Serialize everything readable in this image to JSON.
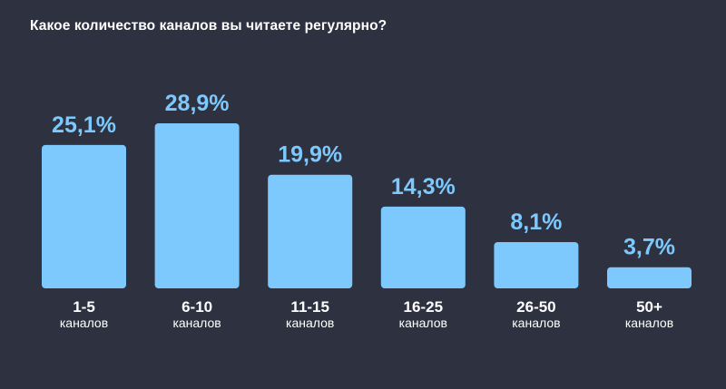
{
  "title": "Какое количество каналов вы читаете регулярно?",
  "colors": {
    "background": "#2e3240",
    "bar": "#7dc9fd",
    "value_label": "#7dc9fd",
    "category_label": "#ffffff"
  },
  "chart_data": {
    "type": "bar",
    "title": "Какое количество каналов вы читаете регулярно?",
    "categories": [
      {
        "main": "1-5",
        "sub": "каналов"
      },
      {
        "main": "6-10",
        "sub": "каналов"
      },
      {
        "main": "11-15",
        "sub": "каналов"
      },
      {
        "main": "16-25",
        "sub": "каналов"
      },
      {
        "main": "26-50",
        "sub": "каналов"
      },
      {
        "main": "50+",
        "sub": "каналов"
      }
    ],
    "values": [
      25.1,
      28.9,
      19.9,
      14.3,
      8.1,
      3.7
    ],
    "value_labels": [
      "25,1%",
      "28,9%",
      "19,9%",
      "14,3%",
      "8,1%",
      "3,7%"
    ],
    "unit": "%",
    "ylim": [
      0,
      28.9
    ],
    "grid": false,
    "legend": "none"
  }
}
